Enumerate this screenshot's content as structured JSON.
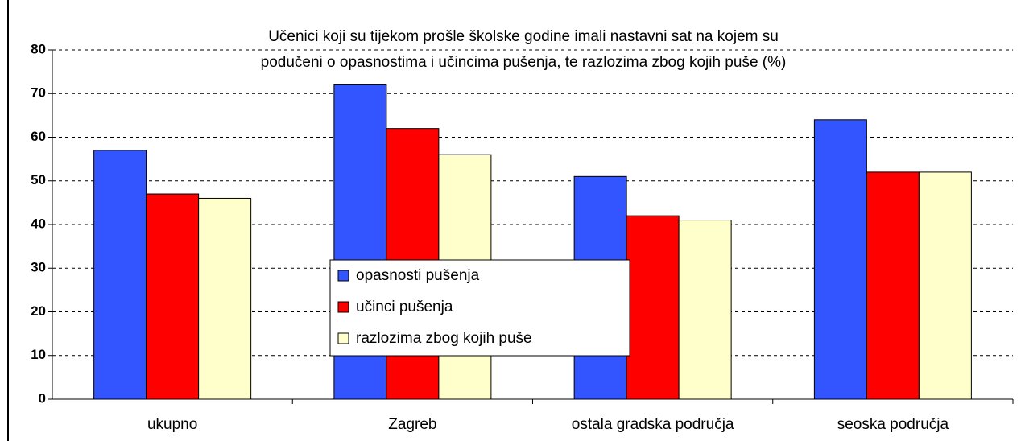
{
  "chart_data": {
    "type": "bar",
    "title": [
      "Učenici koji su tijekom prošle školske godine imali nastavni sat na kojem su",
      "podučeni o opasnostima i učincima pušenja, te razlozima zbog kojih puše (%)"
    ],
    "categories": [
      "ukupno",
      "Zagreb",
      "ostala gradska područja",
      "seoska područja"
    ],
    "series": [
      {
        "name": "opasnosti pušenja",
        "color": "#3355ff",
        "values": [
          57,
          72,
          51,
          64
        ]
      },
      {
        "name": "učinci pušenja",
        "color": "#ff0000",
        "values": [
          47,
          62,
          42,
          52
        ]
      },
      {
        "name": "razlozima zbog kojih puše",
        "color": "#ffffcc",
        "values": [
          46,
          56,
          41,
          52
        ]
      }
    ],
    "ylim": [
      0,
      80
    ],
    "yticks": [
      0,
      10,
      20,
      30,
      40,
      50,
      60,
      70,
      80
    ],
    "grid": true
  }
}
